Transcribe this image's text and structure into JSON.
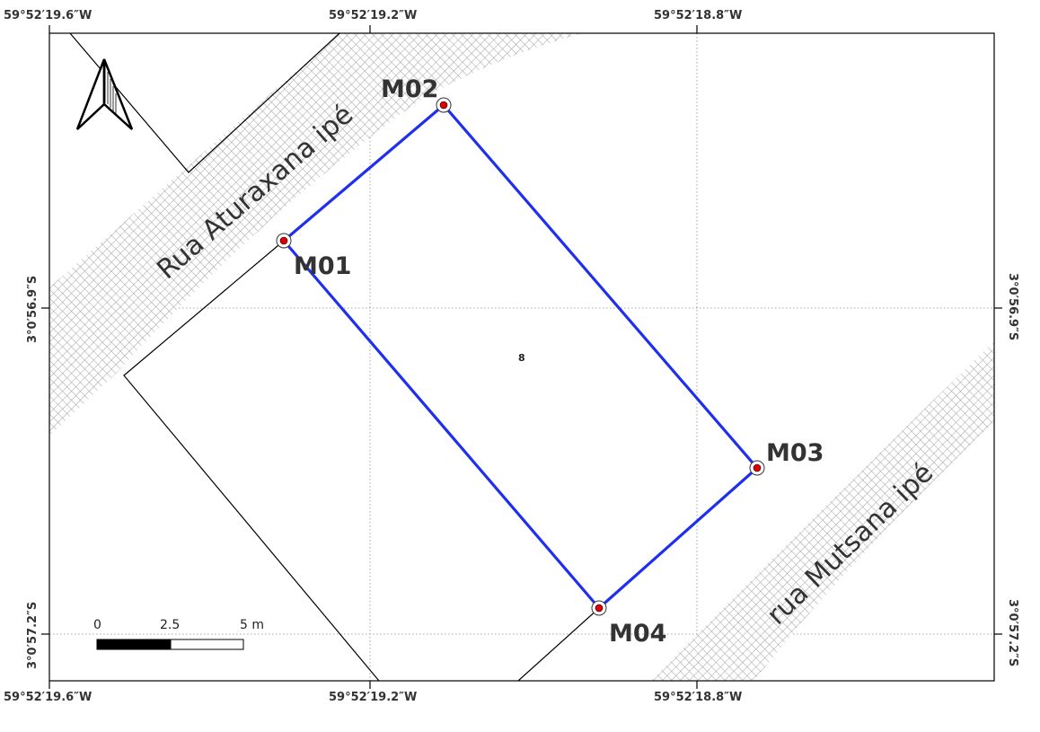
{
  "colors": {
    "boundary": "#1f2ff0",
    "vertex_fill": "#e00000",
    "road_hatch": "#9a9a9a",
    "frame": "#000000",
    "grid": "#888888"
  },
  "coordinates": {
    "top": [
      "59°52′19.6″W",
      "59°52′19.2″W",
      "59°52′18.8″W"
    ],
    "bottom": [
      "59°52′19.6″W",
      "59°52′19.2″W",
      "59°52′18.8″W"
    ],
    "left": [
      "3°0′56.9″S",
      "3°0′57.2″S"
    ],
    "right": [
      "3°0′56.9″S",
      "3°0′57.2″S"
    ]
  },
  "streets": {
    "street_1": "Rua Aturaxana ipé",
    "street_2": "rua Mutsana ipé"
  },
  "parcel": {
    "number": "8",
    "vertices": [
      "M01",
      "M02",
      "M03",
      "M04"
    ]
  },
  "scale_bar": {
    "labels": [
      "0",
      "2.5",
      "5 m"
    ]
  },
  "north_arrow": {
    "icon": "north-arrow-icon"
  }
}
